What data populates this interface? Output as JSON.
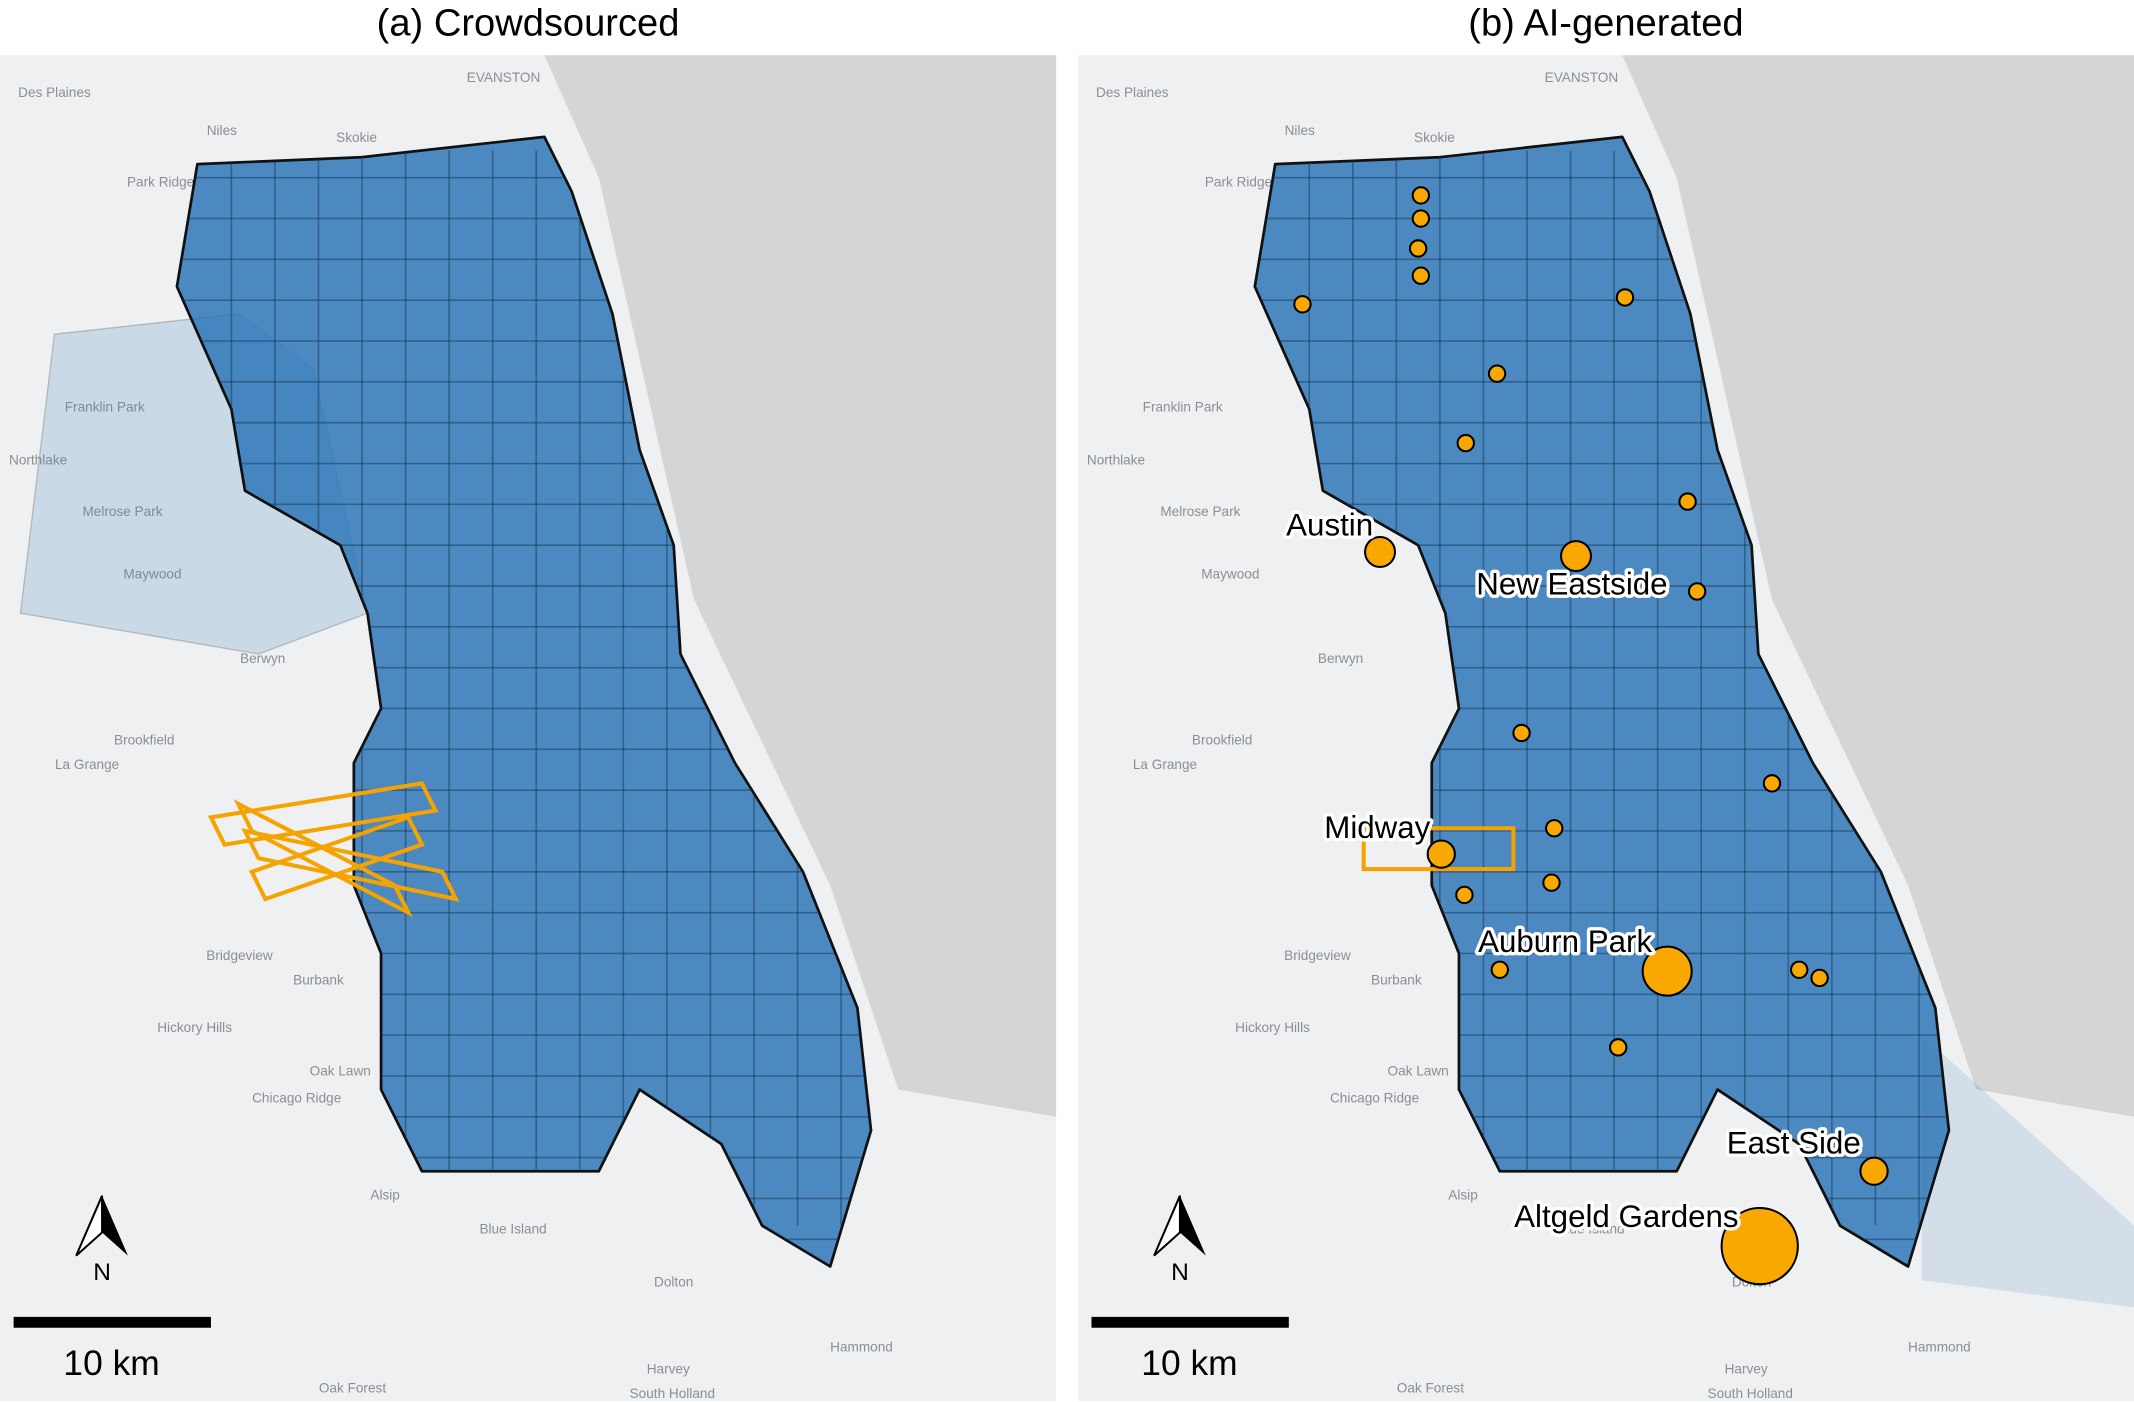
{
  "panels": [
    {
      "title": "(a) Crowdsourced",
      "scale_label": "10 km",
      "north_label": "N",
      "place_labels": [
        "Des Plaines",
        "EVANSTON",
        "Niles",
        "Skokie",
        "Park Ridge",
        "Franklin Park",
        "Northlake",
        "Melrose Park",
        "Maywood",
        "Berwyn",
        "Brookfield",
        "La Grange",
        "Bridgeview",
        "Burbank",
        "Hickory Hills",
        "Oak Lawn",
        "Chicago Ridge",
        "Alsip",
        "Blue Island",
        "Dolton",
        "Harvey",
        "Hammond",
        "Oak Forest",
        "South Holland"
      ]
    },
    {
      "title": "(b) AI-generated",
      "scale_label": "10 km",
      "north_label": "N",
      "place_labels": [
        "Des Plaines",
        "EVANSTON",
        "Niles",
        "Skokie",
        "Park Ridge",
        "Franklin Park",
        "Northlake",
        "Melrose Park",
        "Maywood",
        "Berwyn",
        "Brookfield",
        "La Grange",
        "Bridgeview",
        "Burbank",
        "Hickory Hills",
        "Oak Lawn",
        "Chicago Ridge",
        "Alsip",
        "Blue Island",
        "Dolton",
        "Harvey",
        "Hammond",
        "Oak Forest",
        "South Holland"
      ],
      "annotations": [
        "Austin",
        "New Eastside",
        "Midway",
        "Auburn Park",
        "East Side",
        "Altgeld Gardens"
      ]
    }
  ]
}
